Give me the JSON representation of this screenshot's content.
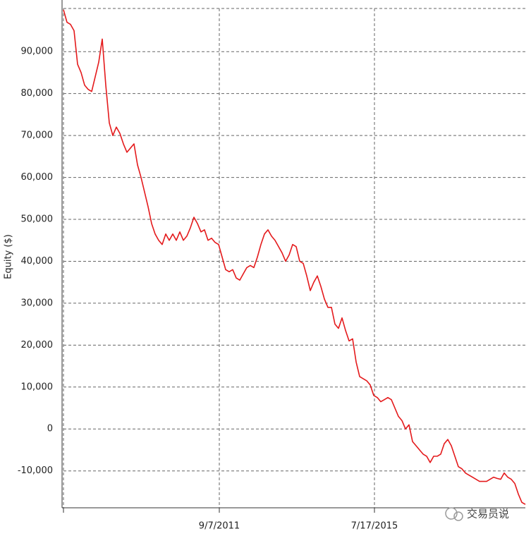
{
  "chart_data": {
    "type": "line",
    "y_label": "Equity ($)",
    "watermark": "交易员说",
    "x": [
      0,
      1,
      2,
      3,
      4,
      5,
      6,
      7,
      8,
      9,
      10,
      11,
      12,
      13,
      14,
      15,
      16,
      17,
      18,
      19,
      20,
      21,
      22,
      23,
      24,
      25,
      26,
      27,
      28,
      29,
      30,
      31,
      32,
      33,
      34,
      35,
      36,
      37,
      38,
      39,
      40,
      41,
      42,
      43,
      44,
      45,
      46,
      47,
      48,
      49,
      50,
      51,
      52,
      53,
      54,
      55,
      56,
      57,
      58,
      59,
      60,
      61,
      62,
      63,
      64,
      65,
      66,
      67,
      68,
      69,
      70,
      71,
      72,
      73,
      74,
      75,
      76,
      77,
      78,
      79,
      80,
      81,
      82,
      83,
      84,
      85,
      86,
      87,
      88,
      89,
      90,
      91,
      92,
      93,
      94,
      95,
      96,
      97,
      98,
      99,
      100,
      101,
      102,
      103,
      104,
      105,
      106,
      107,
      108,
      109,
      110,
      111,
      112,
      113,
      114,
      115,
      116,
      117,
      118,
      119,
      120,
      121,
      122,
      123,
      124,
      125,
      126,
      127,
      128,
      129,
      130,
      131
    ],
    "series": [
      {
        "color": "#e41a1c",
        "values": [
          100000,
          97000,
          96500,
          95000,
          87000,
          85000,
          82000,
          81000,
          80500,
          84000,
          87500,
          93000,
          82000,
          73000,
          70000,
          72000,
          70500,
          68000,
          66000,
          67000,
          68000,
          63000,
          60000,
          56500,
          53000,
          49000,
          46500,
          45000,
          44000,
          46500,
          45000,
          46500,
          45000,
          47000,
          45000,
          46000,
          48000,
          50500,
          49000,
          47000,
          47500,
          45000,
          45500,
          44500,
          44000,
          41000,
          38000,
          37500,
          38000,
          36000,
          35500,
          37000,
          38500,
          39000,
          38500,
          41000,
          44000,
          46500,
          47500,
          46000,
          45000,
          43500,
          42000,
          40000,
          41500,
          44000,
          43500,
          40000,
          39500,
          36500,
          33000,
          35000,
          36500,
          34000,
          31000,
          29000,
          29000,
          25000,
          24000,
          26500,
          23500,
          21000,
          21500,
          16000,
          12500,
          12000,
          11500,
          10500,
          8000,
          7500,
          6500,
          7000,
          7500,
          7000,
          5000,
          3000,
          2000,
          0,
          1000,
          -3000,
          -4000,
          -5000,
          -6000,
          -6500,
          -8000,
          -6500,
          -6500,
          -6000,
          -3500,
          -2500,
          -4000,
          -6500,
          -9000,
          -9500,
          -10500,
          -11000,
          -11500,
          -12000,
          -12500,
          -12500,
          -12500,
          -12000,
          -11500,
          -11800,
          -12000,
          -10500,
          -11500,
          -12000,
          -13000,
          -15500,
          -17500,
          -18000
        ]
      }
    ],
    "xlim": [
      0,
      131
    ],
    "xticks": [
      {
        "value": 44.2,
        "label": "9/7/2011"
      },
      {
        "value": 88.2,
        "label": "7/17/2015"
      }
    ],
    "ylim": [
      -18800,
      100300
    ],
    "yticks": [
      {
        "value": -10000,
        "label": "-10,000"
      },
      0,
      {
        "value": 10000,
        "label": "10,000"
      },
      {
        "value": 20000,
        "label": "20,000"
      },
      {
        "value": 30000,
        "label": "30,000"
      },
      {
        "value": 40000,
        "label": "40,000"
      },
      {
        "value": 50000,
        "label": "50,000"
      },
      {
        "value": 60000,
        "label": "60,000"
      },
      {
        "value": 70000,
        "label": "70,000"
      },
      {
        "value": 80000,
        "label": "80,000"
      },
      {
        "value": 90000,
        "label": "90,000"
      }
    ],
    "grid": true
  }
}
